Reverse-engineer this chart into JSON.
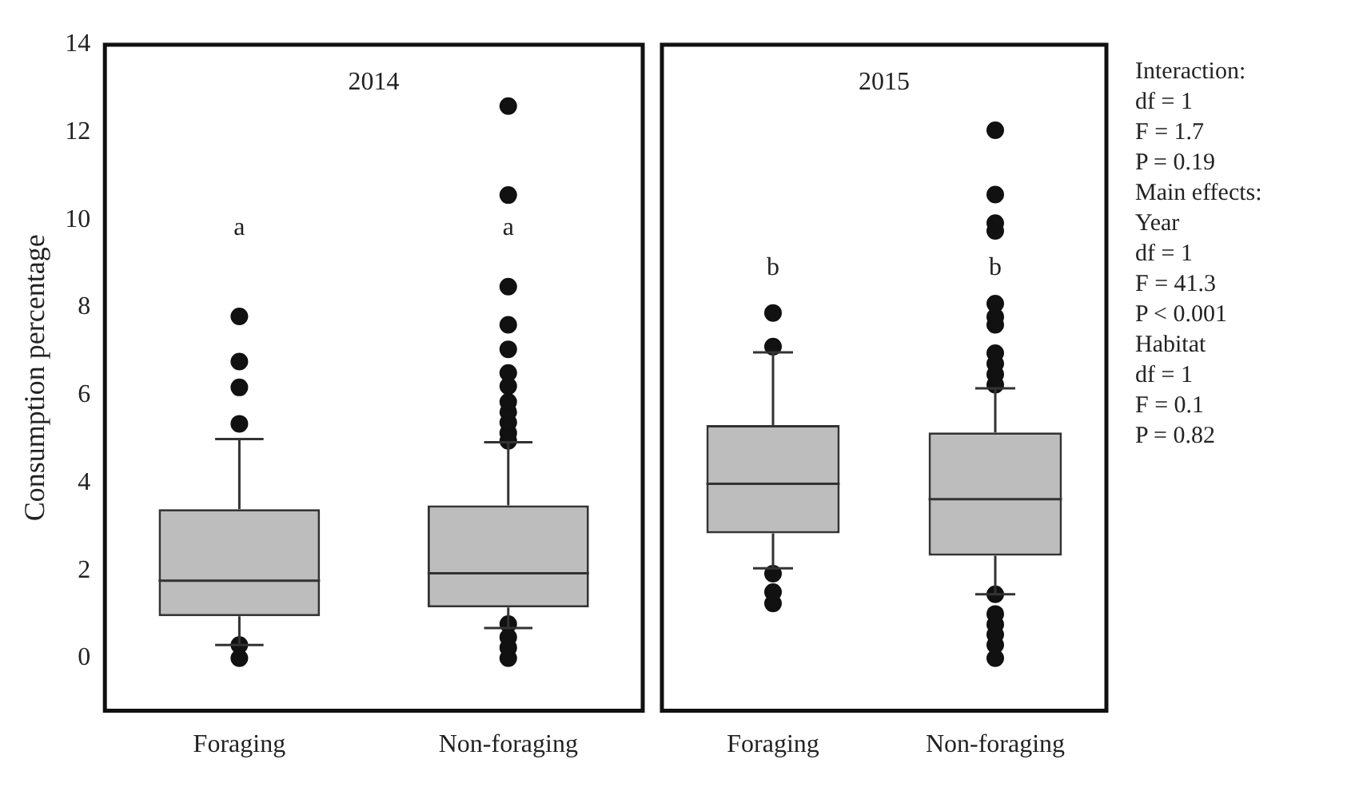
{
  "chart_data": [
    {
      "type": "box",
      "title": "2014",
      "ylabel": "Consumption percentage",
      "categories": [
        "Foraging",
        "Non-foraging"
      ],
      "ylim": [
        -1.2,
        14
      ],
      "yticks": [
        0,
        2,
        4,
        6,
        8,
        10,
        12,
        14
      ],
      "grid": false,
      "legend": false,
      "tick_labels": "xy",
      "boxes": [
        {
          "low": 0.3,
          "q1": 0.96,
          "median": 1.77,
          "q3": 3.4,
          "high": 5.0,
          "outliers": [
            0.3,
            0,
            5.35,
            6.18,
            6.77,
            7.8
          ]
        },
        {
          "low": 0.69,
          "q1": 1.16,
          "median": 1.94,
          "q3": 3.49,
          "high": 4.93,
          "outliers": [
            0.78,
            0.48,
            0.24,
            0,
            4.96,
            5.14,
            5.38,
            5.62,
            5.85,
            6.21,
            6.51,
            7.05,
            7.61,
            8.48,
            10.57,
            12.6
          ]
        }
      ],
      "annotations": [
        "a",
        "a"
      ]
    },
    {
      "type": "box",
      "title": "2015",
      "categories": [
        "Foraging",
        "Non-foraging"
      ],
      "ylim": [
        -1.2,
        14
      ],
      "yticks": [
        0,
        2,
        4,
        6,
        8,
        10,
        12,
        14
      ],
      "grid": false,
      "legend": false,
      "tick_labels": "x",
      "boxes": [
        {
          "low": 2.05,
          "q1": 2.85,
          "median": 3.98,
          "q3": 5.32,
          "high": 6.98,
          "outliers": [
            1.93,
            1.51,
            1.25,
            7.11,
            7.88
          ]
        },
        {
          "low": 1.46,
          "q1": 2.34,
          "median": 3.63,
          "q3": 5.15,
          "high": 6.16,
          "outliers": [
            1.46,
            1.01,
            0.77,
            0.54,
            0.3,
            0,
            6.24,
            6.48,
            6.72,
            6.96,
            7.61,
            7.79,
            8.09,
            9.75,
            9.93,
            10.58,
            12.05
          ]
        }
      ],
      "annotations": [
        "b",
        "b",
        "Interaction:",
        "df = 1",
        "F = 1.7",
        "P = 0.19",
        "Main effects:",
        "Year",
        "df = 1",
        "F = 41.3",
        "P < 0.001",
        "Habitat",
        "df = 1",
        "F = 0.1",
        "P = 0.82"
      ]
    }
  ]
}
